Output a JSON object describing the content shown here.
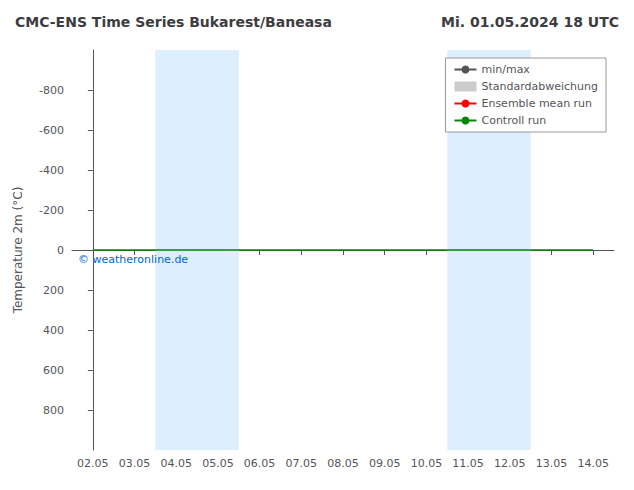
{
  "chart_data": {
    "type": "line",
    "title": "CMC-ENS Time Series Bukarest/Baneasa",
    "subtitle": "Mi. 01.05.2024 18 UTC",
    "ylabel": "Temperature 2m (°C)",
    "categories": [
      "02.05",
      "03.05",
      "04.05",
      "05.05",
      "06.05",
      "07.05",
      "08.05",
      "09.05",
      "10.05",
      "11.05",
      "12.05",
      "13.05",
      "14.05"
    ],
    "series": [
      {
        "name": "min/max",
        "color": "#555555",
        "values": [
          null,
          null,
          null,
          null,
          null,
          null,
          null,
          null,
          null,
          null,
          null,
          null,
          null
        ]
      },
      {
        "name": "Standardabweichung",
        "type": "bar",
        "color": "#cccccc",
        "values": [
          null,
          null,
          null,
          null,
          null,
          null,
          null,
          null,
          null,
          null,
          null,
          null,
          null
        ]
      },
      {
        "name": "Ensemble mean run",
        "color": "#ff0000",
        "values": [
          null,
          null,
          null,
          null,
          null,
          null,
          null,
          null,
          null,
          null,
          null,
          null,
          null
        ]
      },
      {
        "name": "Controll run",
        "color": "#008800",
        "values": [
          0,
          0,
          0,
          0,
          0,
          0,
          0,
          0,
          0,
          0,
          0,
          0,
          0
        ]
      }
    ],
    "ylim": [
      1000,
      -1000
    ],
    "yticks": [
      -800,
      -600,
      -400,
      -200,
      0,
      200,
      400,
      600,
      800
    ],
    "grid": false,
    "legend": "upper right",
    "bands": [
      {
        "from": "04.05",
        "to": "05.05",
        "color": "#ddeeff"
      },
      {
        "from": "11.05",
        "to": "12.05",
        "color": "#ddeeff"
      }
    ],
    "annotations": [
      {
        "text": "© weatheronline.de",
        "color": "#0066cc"
      }
    ]
  }
}
